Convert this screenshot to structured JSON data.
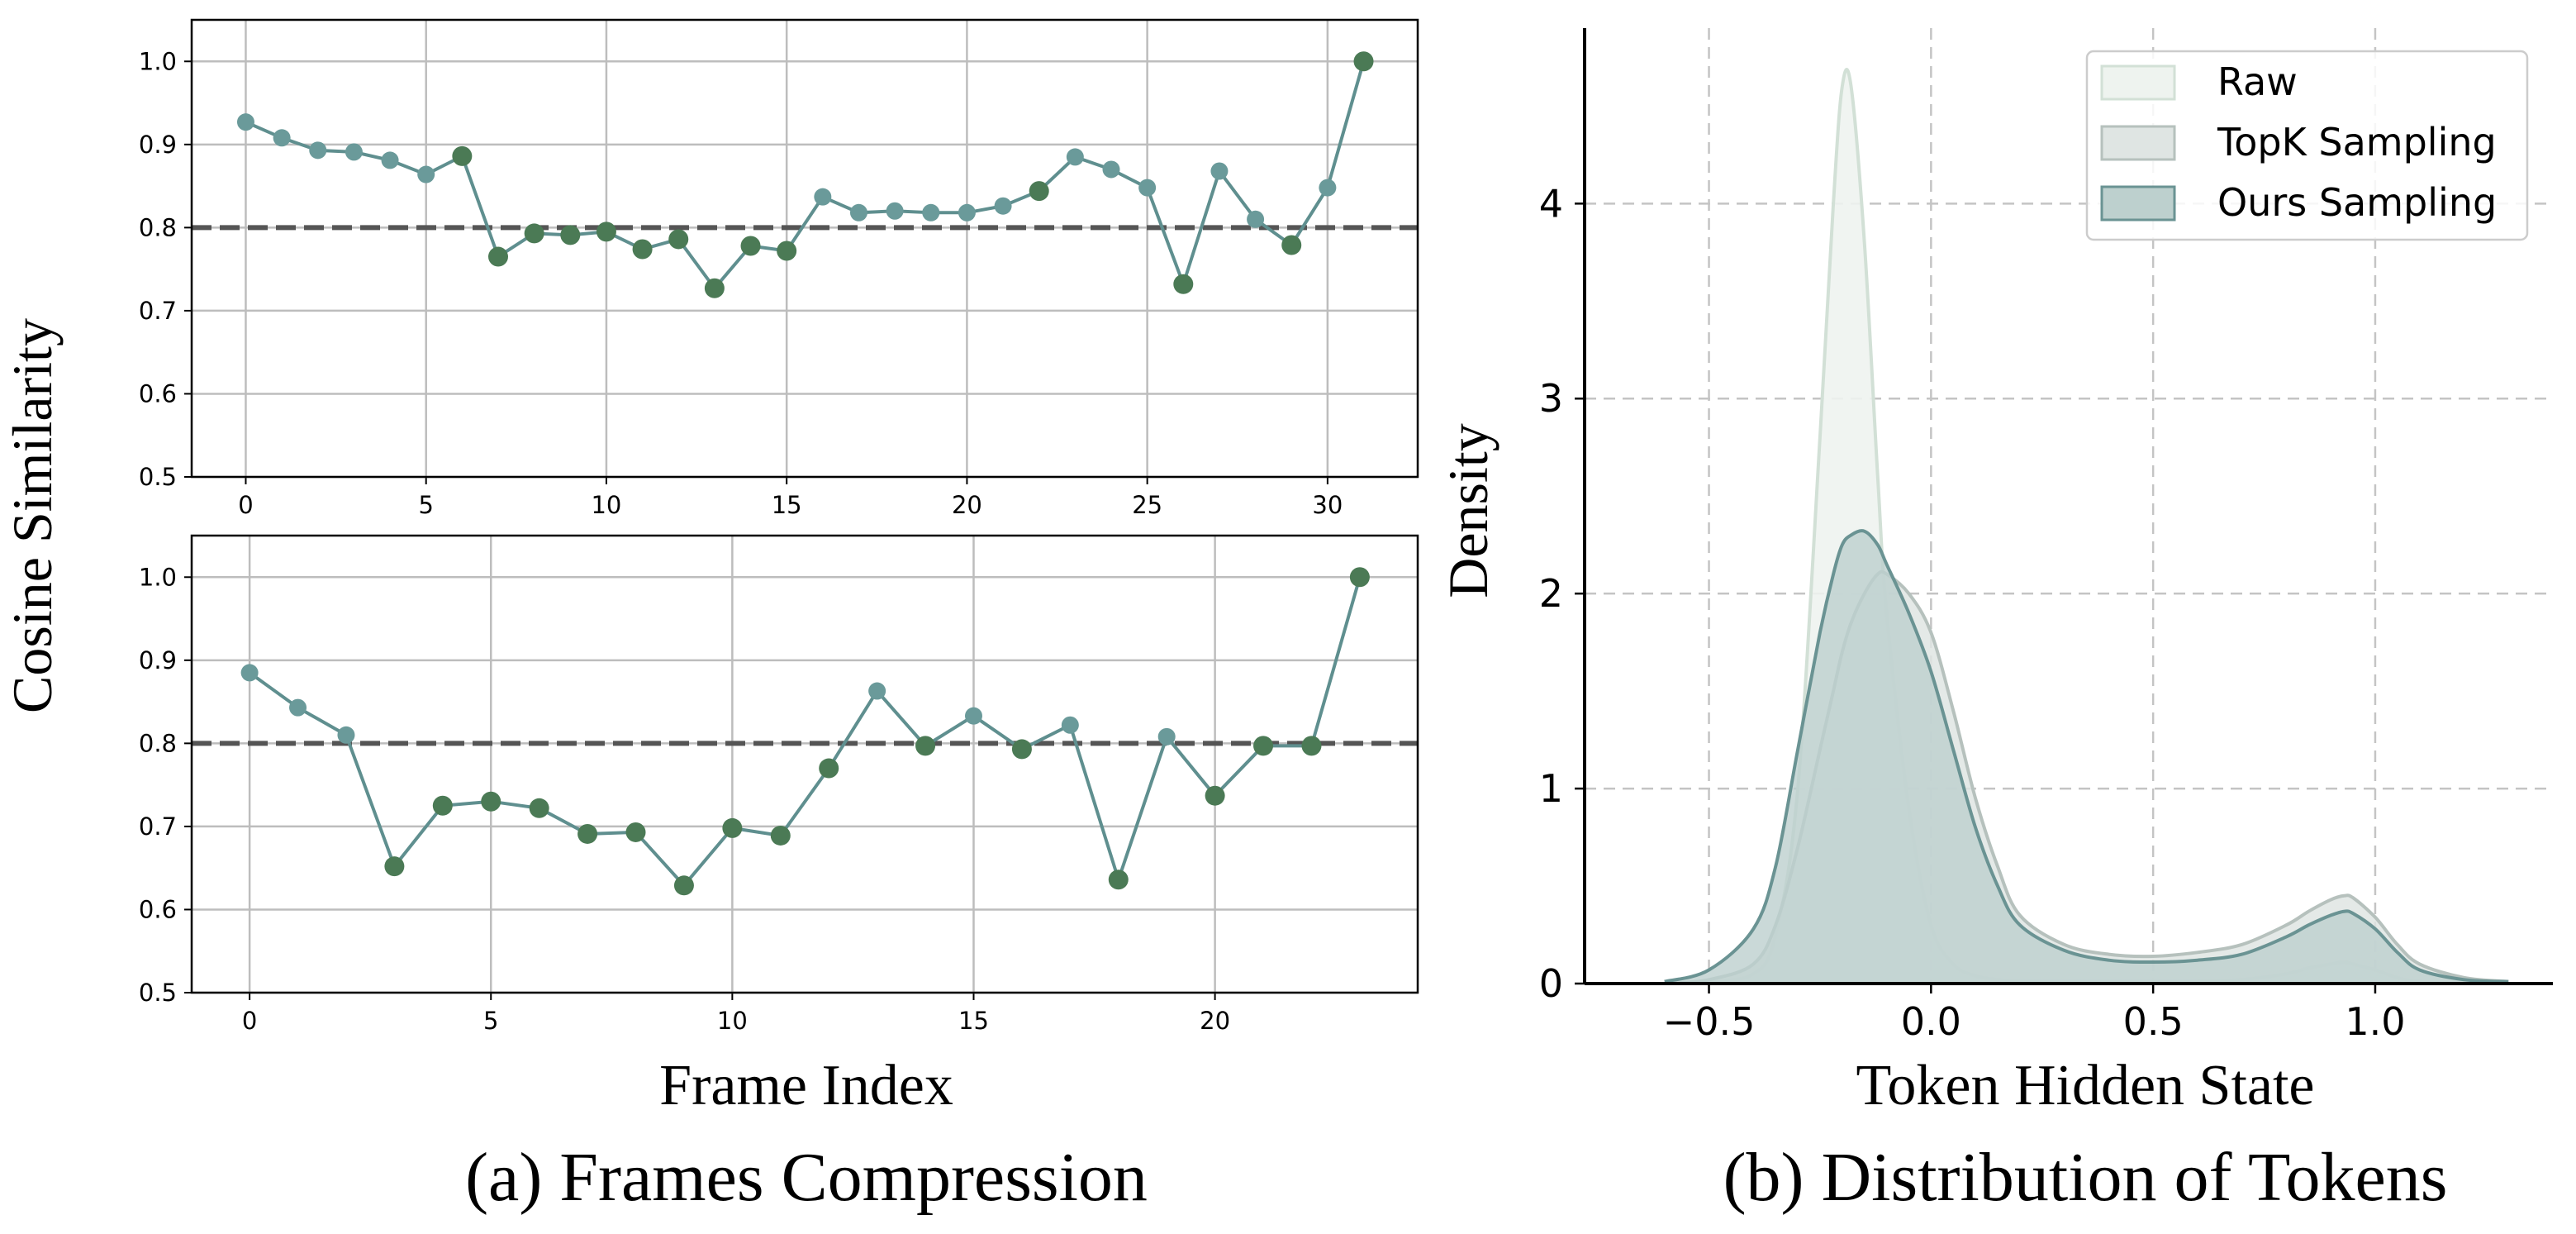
{
  "colors": {
    "line": "#5f8f8f",
    "marker_light": "#6a9a9a",
    "marker_dark": "#4b7a55",
    "threshold": "#555555",
    "grid": "#bdbdbd",
    "raw_fill": "#eef3ef",
    "raw_edge": "#d2e0d6",
    "topk_fill": "#dfe5e3",
    "topk_edge": "#b6c1bd",
    "ours_fill": "#bdd0ce",
    "ours_edge": "#6a9393"
  },
  "captions": {
    "a": "(a) Frames Compression",
    "b": "(b) Distribution of Tokens"
  },
  "chart_data": [
    {
      "type": "line",
      "panel": "a-top",
      "ylabel": "Cosine Similarity",
      "xticks": [
        "0",
        "5",
        "10",
        "15",
        "20",
        "25",
        "30"
      ],
      "yticks": [
        "0.5",
        "0.6",
        "0.7",
        "0.8",
        "0.9",
        "1.0"
      ],
      "xlim": [
        -1.5,
        32.5
      ],
      "ylim": [
        0.5,
        1.05
      ],
      "threshold": 0.8,
      "grid": true,
      "x": [
        0,
        1,
        2,
        3,
        4,
        5,
        6,
        7,
        8,
        9,
        10,
        11,
        12,
        13,
        14,
        15,
        16,
        17,
        18,
        19,
        20,
        21,
        22,
        23,
        24,
        25,
        26,
        27,
        28,
        29,
        30,
        31
      ],
      "values": [
        0.927,
        0.908,
        0.893,
        0.891,
        0.881,
        0.864,
        0.886,
        0.765,
        0.793,
        0.791,
        0.795,
        0.774,
        0.786,
        0.727,
        0.778,
        0.772,
        0.837,
        0.818,
        0.82,
        0.818,
        0.818,
        0.826,
        0.844,
        0.885,
        0.87,
        0.848,
        0.732,
        0.868,
        0.81,
        0.779,
        0.848,
        1.0
      ],
      "selected": [
        false,
        false,
        false,
        false,
        false,
        false,
        true,
        true,
        true,
        true,
        true,
        true,
        true,
        true,
        true,
        true,
        false,
        false,
        false,
        false,
        false,
        false,
        true,
        false,
        false,
        false,
        true,
        false,
        false,
        true,
        false,
        true
      ]
    },
    {
      "type": "line",
      "panel": "a-bottom",
      "xlabel": "Frame Index",
      "xticks": [
        "0",
        "5",
        "10",
        "15",
        "20"
      ],
      "yticks": [
        "0.5",
        "0.6",
        "0.7",
        "0.8",
        "0.9",
        "1.0"
      ],
      "xlim": [
        -1.2,
        24.2
      ],
      "ylim": [
        0.5,
        1.05
      ],
      "threshold": 0.8,
      "grid": true,
      "x": [
        0,
        1,
        2,
        3,
        4,
        5,
        6,
        7,
        8,
        9,
        10,
        11,
        12,
        13,
        14,
        15,
        16,
        17,
        18,
        19,
        20,
        21,
        22,
        23
      ],
      "values": [
        0.885,
        0.843,
        0.81,
        0.652,
        0.725,
        0.73,
        0.722,
        0.691,
        0.693,
        0.629,
        0.698,
        0.689,
        0.77,
        0.863,
        0.797,
        0.833,
        0.793,
        0.822,
        0.636,
        0.808,
        0.737,
        0.797,
        0.797,
        1.0
      ],
      "selected": [
        false,
        false,
        false,
        true,
        true,
        true,
        true,
        true,
        true,
        true,
        true,
        true,
        true,
        false,
        true,
        false,
        true,
        false,
        true,
        false,
        true,
        true,
        true,
        true
      ]
    },
    {
      "type": "area",
      "panel": "b",
      "xlabel": "Token Hidden State",
      "ylabel": "Density",
      "xticks": [
        "−0.5",
        "0.0",
        "0.5",
        "1.0"
      ],
      "yticks": [
        "0",
        "1",
        "2",
        "3",
        "4"
      ],
      "xlim": [
        -0.78,
        1.4
      ],
      "ylim": [
        0,
        4.9
      ],
      "grid": true,
      "legend_position": "top-right",
      "x": [
        -0.6,
        -0.5,
        -0.4,
        -0.35,
        -0.3,
        -0.25,
        -0.22,
        -0.2,
        -0.18,
        -0.15,
        -0.12,
        -0.1,
        -0.05,
        0.0,
        0.05,
        0.1,
        0.15,
        0.2,
        0.3,
        0.4,
        0.5,
        0.6,
        0.7,
        0.8,
        0.85,
        0.9,
        0.93,
        0.95,
        1.0,
        1.05,
        1.1,
        1.2,
        1.3
      ],
      "series": [
        {
          "name": "Raw",
          "values": [
            0,
            0.01,
            0.05,
            0.25,
            1.0,
            2.8,
            4.0,
            4.6,
            4.6,
            3.8,
            2.6,
            1.9,
            0.9,
            0.3,
            0.1,
            0.04,
            0.02,
            0.01,
            0.01,
            0.01,
            0.01,
            0.01,
            0.02,
            0.05,
            0.08,
            0.1,
            0.11,
            0.1,
            0.07,
            0.03,
            0.01,
            0,
            0
          ]
        },
        {
          "name": "TopK Sampling",
          "values": [
            0,
            0.02,
            0.1,
            0.3,
            0.7,
            1.2,
            1.5,
            1.7,
            1.85,
            2.0,
            2.1,
            2.1,
            2.0,
            1.8,
            1.4,
            0.95,
            0.6,
            0.35,
            0.2,
            0.15,
            0.14,
            0.16,
            0.2,
            0.3,
            0.37,
            0.43,
            0.45,
            0.44,
            0.34,
            0.2,
            0.1,
            0.03,
            0.01
          ]
        },
        {
          "name": "Ours Sampling",
          "values": [
            0.01,
            0.07,
            0.28,
            0.6,
            1.2,
            1.8,
            2.1,
            2.25,
            2.3,
            2.32,
            2.25,
            2.15,
            1.9,
            1.6,
            1.2,
            0.8,
            0.5,
            0.3,
            0.17,
            0.12,
            0.11,
            0.12,
            0.15,
            0.24,
            0.3,
            0.35,
            0.37,
            0.36,
            0.28,
            0.16,
            0.07,
            0.02,
            0.01
          ]
        }
      ]
    }
  ]
}
